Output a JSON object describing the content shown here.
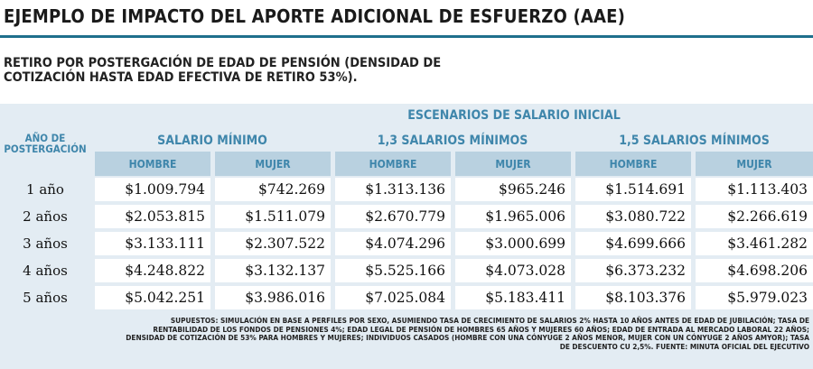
{
  "title": "EJEMPLO DE IMPACTO DEL APORTE ADICIONAL DE ESFUERZO (AAE)",
  "subtitle_line1": "RETIRO POR POSTERGACIÓN DE EDAD DE PENSIÓN (DENSIDAD DE",
  "subtitle_line2": "COTIZACIÓN HASTA EDAD EFECTIVA DE RETIRO 53%).",
  "table": {
    "super_header": "ESCENARIOS DE SALARIO INICIAL",
    "row_header_line1": "AÑO DE",
    "row_header_line2": "POSTERGACIÓN",
    "groups": [
      "SALARIO MÍNIMO",
      "1,3 SALARIOS MÍNIMOS",
      "1,5 SALARIOS MÍNIMOS"
    ],
    "sub_headers": [
      "HOMBRE",
      "MUJER",
      "HOMBRE",
      "MUJER",
      "HOMBRE",
      "MUJER"
    ],
    "rows": [
      {
        "label": "1 año",
        "values": [
          "$1.009.794",
          "$742.269",
          "$1.313.136",
          "$965.246",
          "$1.514.691",
          "$1.113.403"
        ]
      },
      {
        "label": "2 años",
        "values": [
          "$2.053.815",
          "$1.511.079",
          "$2.670.779",
          "$1.965.006",
          "$3.080.722",
          "$2.266.619"
        ]
      },
      {
        "label": "3 años",
        "values": [
          "$3.133.111",
          "$2.307.522",
          "$4.074.296",
          "$3.000.699",
          "$4.699.666",
          "$3.461.282"
        ]
      },
      {
        "label": "4 años",
        "values": [
          "$4.248.822",
          "$3.132.137",
          "$5.525.166",
          "$4.073.028",
          "$6.373.232",
          "$4.698.206"
        ]
      },
      {
        "label": "5 años",
        "values": [
          "$5.042.251",
          "$3.986.016",
          "$7.025.084",
          "$5.183.411",
          "$8.103.376",
          "$5.979.023"
        ]
      }
    ]
  },
  "footnote": {
    "line1": "SUPUESTOS: SIMULACIÓN EN BASE A PERFILES POR SEXO, ASUMIENDO TASA DE CRECIMIENTO DE SALARIOS 2% HASTA 10 AÑOS ANTES DE EDAD DE JUBILACIÓN; TASA DE",
    "line2": "RENTABILIDAD DE LOS FONDOS DE PENSIONES 4%; EDAD LEGAL DE PENSIÓN DE HOMBRES 65 AÑOS Y MUJERES 60 AÑOS; EDAD DE ENTRADA AL MERCADO LABORAL 22 AÑOS;",
    "line3": "DENSIDAD DE COTIZACIÓN DE 53% PARA HOMBRES Y MUJERES; INDIVIDUOS CASADOS (HOMBRE CON UNA CÓNYUGE 2 AÑOS MENOR, MUJER CON UN CÓNYUGE 2 AÑOS AMYOR); TASA",
    "line4": "DE DESCUENTO CU 2,5%. FUENTE: MINUTA OFICIAL DEL EJECUTIVO"
  },
  "colors": {
    "accent": "#3f86ab",
    "rule": "#1e6f8c",
    "panel": "#e3ecf3",
    "subheader": "#b9d1e0"
  }
}
